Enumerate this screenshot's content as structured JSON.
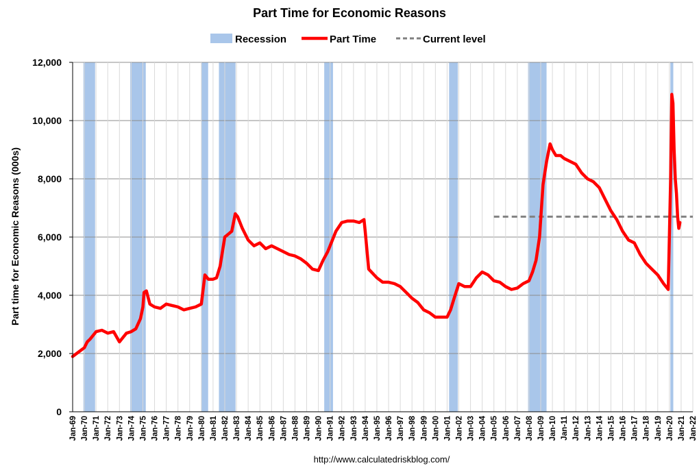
{
  "chart_data": {
    "type": "line",
    "title": "Part Time for Economic Reasons",
    "ylabel": "Part time for Economic Reasons (000s)",
    "xlabel": "",
    "source": "http://www.calculatedriskblog.com/",
    "ylim": [
      0,
      12000
    ],
    "yticks": [
      0,
      2000,
      4000,
      6000,
      8000,
      10000,
      12000
    ],
    "ytick_labels": [
      "0",
      "2,000",
      "4,000",
      "6,000",
      "8,000",
      "10,000",
      "12,000"
    ],
    "xlim": [
      1969.0,
      2022.0
    ],
    "xticks": [
      1969,
      1970,
      1971,
      1972,
      1973,
      1974,
      1975,
      1976,
      1977,
      1978,
      1979,
      1980,
      1981,
      1982,
      1983,
      1984,
      1985,
      1986,
      1987,
      1988,
      1989,
      1990,
      1991,
      1992,
      1993,
      1994,
      1995,
      1996,
      1997,
      1998,
      1999,
      2000,
      2001,
      2002,
      2003,
      2004,
      2005,
      2006,
      2007,
      2008,
      2009,
      2010,
      2011,
      2012,
      2013,
      2014,
      2015,
      2016,
      2017,
      2018,
      2019,
      2020,
      2021,
      2022
    ],
    "xtick_labels": [
      "Jan-69",
      "Jan-70",
      "Jan-71",
      "Jan-72",
      "Jan-73",
      "Jan-74",
      "Jan-75",
      "Jan-76",
      "Jan-77",
      "Jan-78",
      "Jan-79",
      "Jan-80",
      "Jan-81",
      "Jan-82",
      "Jan-83",
      "Jan-84",
      "Jan-85",
      "Jan-86",
      "Jan-87",
      "Jan-88",
      "Jan-89",
      "Jan-90",
      "Jan-91",
      "Jan-92",
      "Jan-93",
      "Jan-94",
      "Jan-95",
      "Jan-96",
      "Jan-97",
      "Jan-98",
      "Jan-99",
      "Jan-00",
      "Jan-01",
      "Jan-02",
      "Jan-03",
      "Jan-04",
      "Jan-05",
      "Jan-06",
      "Jan-07",
      "Jan-08",
      "Jan-09",
      "Jan-10",
      "Jan-11",
      "Jan-12",
      "Jan-13",
      "Jan-14",
      "Jan-15",
      "Jan-16",
      "Jan-17",
      "Jan-18",
      "Jan-19",
      "Jan-20",
      "Jan-21",
      "Jan-22"
    ],
    "grid": true,
    "legend_position": "top-center",
    "legend": [
      "Recession",
      "Part Time",
      "Current level"
    ],
    "colors": {
      "recession": "#a9c6ea",
      "line": "#ff0000",
      "current": "#808080",
      "grid": "#b0b0b0"
    },
    "recessions": [
      [
        1969.92,
        1970.92
      ],
      [
        1973.92,
        1975.25
      ],
      [
        1980.0,
        1980.58
      ],
      [
        1981.5,
        1982.92
      ],
      [
        1990.5,
        1991.25
      ],
      [
        2001.17,
        2001.92
      ],
      [
        2007.92,
        2009.5
      ],
      [
        2020.08,
        2020.33
      ]
    ],
    "current_level": {
      "value": 6700,
      "x_start": 2005.0,
      "x_end": 2022.0
    },
    "series": [
      {
        "name": "Part Time",
        "x": [
          1969.0,
          1969.5,
          1970.0,
          1970.25,
          1970.5,
          1971.0,
          1971.5,
          1972.0,
          1972.5,
          1973.0,
          1973.3,
          1973.6,
          1974.0,
          1974.4,
          1974.8,
          1975.0,
          1975.1,
          1975.3,
          1975.6,
          1976.0,
          1976.5,
          1977.0,
          1977.5,
          1978.0,
          1978.5,
          1979.0,
          1979.5,
          1980.0,
          1980.3,
          1980.6,
          1981.0,
          1981.3,
          1981.6,
          1982.0,
          1982.3,
          1982.6,
          1982.9,
          1983.1,
          1983.5,
          1984.0,
          1984.5,
          1985.0,
          1985.5,
          1986.0,
          1986.5,
          1987.0,
          1987.5,
          1988.0,
          1988.5,
          1989.0,
          1989.5,
          1990.0,
          1990.4,
          1990.8,
          1991.1,
          1991.5,
          1992.0,
          1992.5,
          1993.0,
          1993.5,
          1993.9,
          1994.0,
          1994.3,
          1995.0,
          1995.5,
          1996.0,
          1996.5,
          1997.0,
          1997.5,
          1998.0,
          1998.5,
          1999.0,
          1999.5,
          2000.0,
          2000.5,
          2001.0,
          2001.3,
          2001.6,
          2002.0,
          2002.5,
          2003.0,
          2003.5,
          2004.0,
          2004.5,
          2005.0,
          2005.5,
          2006.0,
          2006.5,
          2007.0,
          2007.5,
          2008.0,
          2008.3,
          2008.6,
          2008.9,
          2009.2,
          2009.5,
          2009.8,
          2010.0,
          2010.3,
          2010.7,
          2011.0,
          2011.5,
          2012.0,
          2012.5,
          2013.0,
          2013.5,
          2014.0,
          2014.5,
          2015.0,
          2015.5,
          2016.0,
          2016.5,
          2017.0,
          2017.5,
          2018.0,
          2018.5,
          2019.0,
          2019.5,
          2019.9,
          2020.1,
          2020.2,
          2020.3,
          2020.4,
          2020.5,
          2020.6,
          2020.7,
          2020.8,
          2020.9
        ],
        "values": [
          1900,
          2050,
          2200,
          2400,
          2500,
          2750,
          2800,
          2700,
          2750,
          2400,
          2550,
          2700,
          2750,
          2850,
          3200,
          3600,
          4100,
          4150,
          3700,
          3600,
          3550,
          3700,
          3650,
          3600,
          3500,
          3550,
          3600,
          3700,
          4700,
          4550,
          4550,
          4600,
          5000,
          6000,
          6100,
          6200,
          6800,
          6700,
          6300,
          5900,
          5700,
          5800,
          5600,
          5700,
          5600,
          5500,
          5400,
          5350,
          5250,
          5100,
          4900,
          4850,
          5200,
          5500,
          5800,
          6200,
          6500,
          6550,
          6550,
          6500,
          6600,
          6200,
          4900,
          4600,
          4450,
          4450,
          4400,
          4300,
          4100,
          3900,
          3750,
          3500,
          3400,
          3250,
          3250,
          3250,
          3500,
          3900,
          4400,
          4300,
          4300,
          4600,
          4800,
          4700,
          4500,
          4450,
          4300,
          4200,
          4250,
          4400,
          4500,
          4800,
          5200,
          6000,
          7800,
          8600,
          9200,
          9000,
          8800,
          8800,
          8700,
          8600,
          8500,
          8200,
          8000,
          7900,
          7700,
          7300,
          6900,
          6600,
          6200,
          5900,
          5800,
          5400,
          5100,
          4900,
          4700,
          4400,
          4200,
          8000,
          10900,
          10600,
          9000,
          8000,
          7500,
          6700,
          6300,
          6500
        ]
      }
    ]
  }
}
